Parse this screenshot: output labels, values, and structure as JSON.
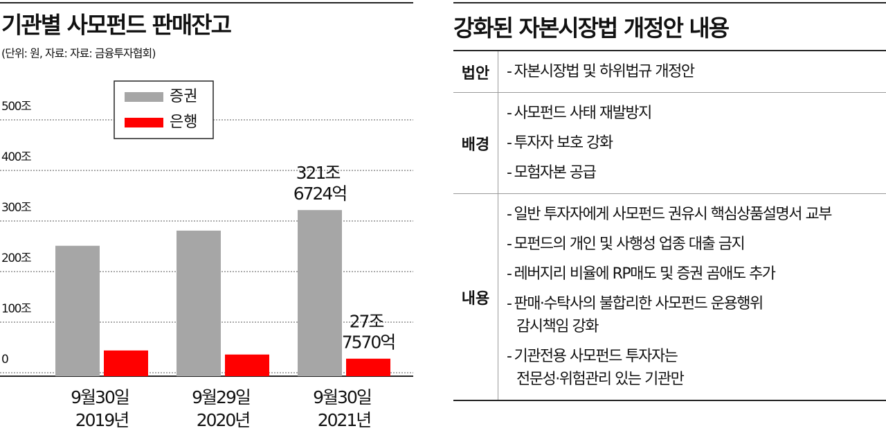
{
  "chart_data": {
    "type": "bar",
    "title": "기관별 사모펀드 판매잔고",
    "subtitle": "(단위: 원, 자료: 자료: 금융투자협회)",
    "categories": [
      "9월30일 2019년",
      "9월29일 2020년",
      "9월30일 2021년"
    ],
    "series": [
      {
        "name": "증권",
        "color": "#a6a6a6",
        "values": [
          251,
          281,
          321.6724
        ],
        "value_labels": [
          null,
          null,
          "321조 6724억"
        ]
      },
      {
        "name": "은행",
        "color": "#ff0000",
        "values": [
          44,
          36,
          27.757
        ],
        "value_labels": [
          null,
          null,
          "27조 7570억"
        ]
      }
    ],
    "ylim": [
      0,
      500
    ],
    "yticks": [
      0,
      {
        "value": 100,
        "label": "100조"
      },
      {
        "value": 200,
        "label": "200조"
      },
      {
        "value": 300,
        "label": "300조"
      },
      {
        "value": 400,
        "label": "400조"
      },
      {
        "value": 500,
        "label": "500조"
      }
    ],
    "grid": true
  },
  "table": {
    "title": "강화된 자본시장법 개정안 내용",
    "rows": [
      {
        "label": "법안",
        "items": [
          [
            "자본시장법 및 하위법규 개정안"
          ]
        ]
      },
      {
        "label": "배경",
        "items": [
          [
            "사모펀드 사태 재발방지"
          ],
          [
            "투자자 보호 강화"
          ],
          [
            "모험자본 공급"
          ]
        ]
      },
      {
        "label": "내용",
        "items": [
          [
            "일반 투자자에게 사모펀드 권유시 핵심상품설명서 교부"
          ],
          [
            "모펀드의 개인 및 사행성 업종 대출 금지"
          ],
          [
            "레버지리 비율에 RP매도 및 증권 곰애도 추가"
          ],
          [
            "판매·수탁사의 불합리한 사모펀드 운용행위",
            "감시책임 강화"
          ],
          [
            "기관전용 사모펀드 투자자는",
            "전문성·위험관리 있는 기관만"
          ]
        ]
      }
    ]
  }
}
